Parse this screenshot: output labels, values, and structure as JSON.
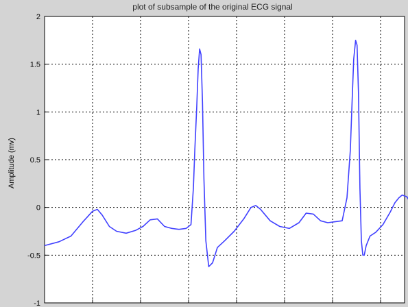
{
  "chart_data": {
    "type": "line",
    "title": "plot of subsample of the original ECG signal",
    "xlabel": "",
    "ylabel": "Amplitude (mv)",
    "xlim": [
      0,
      7.5
    ],
    "ylim": [
      -1,
      2
    ],
    "yticks": [
      -1,
      -0.5,
      0,
      0.5,
      1,
      1.5,
      2
    ],
    "ytick_labels": [
      "-1",
      "-0.5",
      "0",
      "0.5",
      "1",
      "1.5",
      "2"
    ],
    "xticks": [
      1,
      2,
      3,
      4,
      5,
      6,
      7
    ],
    "grid": true,
    "colors": {
      "line": "#4040ff",
      "axes_bg": "#ffffff",
      "figure_bg": "#d4d4d4",
      "grid": "#000000"
    },
    "series": [
      {
        "x": [
          0,
          0.3,
          0.55,
          0.8,
          1.0,
          1.1,
          1.2,
          1.35,
          1.5,
          1.7,
          1.9,
          2.05,
          2.2,
          2.35,
          2.5,
          2.65,
          2.8,
          2.95,
          3.05,
          3.1,
          3.13,
          3.17,
          3.2,
          3.23,
          3.26,
          3.29,
          3.32,
          3.36,
          3.42,
          3.5,
          3.6,
          3.75,
          3.95,
          4.15,
          4.3,
          4.4,
          4.5,
          4.7,
          4.9,
          5.1,
          5.3,
          5.45,
          5.6,
          5.75,
          5.9,
          6.05,
          6.2,
          6.3,
          6.37,
          6.41,
          6.44,
          6.48,
          6.51,
          6.54,
          6.57,
          6.6,
          6.63,
          6.66,
          6.7,
          6.78,
          6.9,
          7.05,
          7.2,
          7.3,
          7.38,
          7.45,
          7.55,
          7.62
        ],
        "y": [
          -0.4,
          -0.36,
          -0.3,
          -0.15,
          -0.04,
          -0.02,
          -0.08,
          -0.2,
          -0.25,
          -0.27,
          -0.24,
          -0.2,
          -0.13,
          -0.12,
          -0.2,
          -0.22,
          -0.23,
          -0.22,
          -0.18,
          0.2,
          0.6,
          1.05,
          1.45,
          1.66,
          1.6,
          1.1,
          0.3,
          -0.35,
          -0.62,
          -0.58,
          -0.42,
          -0.35,
          -0.25,
          -0.12,
          0.0,
          0.02,
          -0.02,
          -0.14,
          -0.2,
          -0.22,
          -0.16,
          -0.06,
          -0.07,
          -0.14,
          -0.16,
          -0.15,
          -0.14,
          0.1,
          0.6,
          1.15,
          1.55,
          1.75,
          1.7,
          1.2,
          0.2,
          -0.35,
          -0.5,
          -0.5,
          -0.4,
          -0.3,
          -0.26,
          -0.18,
          -0.05,
          0.05,
          0.1,
          0.13,
          0.11,
          0.05
        ]
      }
    ]
  }
}
